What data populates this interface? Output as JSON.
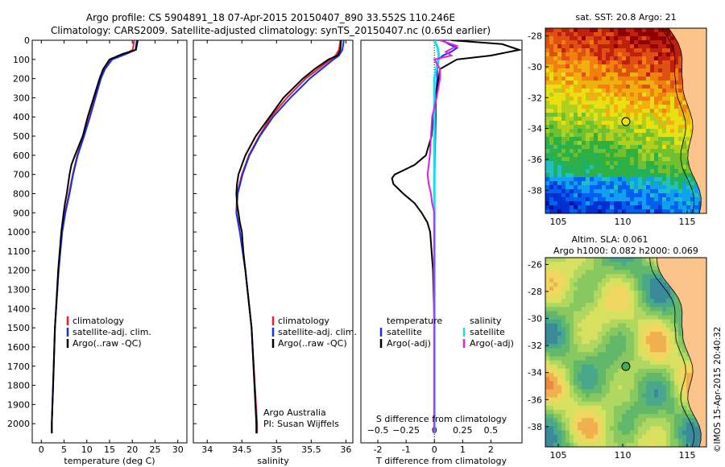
{
  "header": {
    "title_line1": "Argo profile: CS 5904891_18 07-Apr-2015 20150407_890 33.552S 110.246E",
    "title_line2": "Climatology: CARS2009. Satellite-adjusted climatology: synTS_20150407.nc (0.65d earlier)"
  },
  "colors": {
    "climatology": "#e8201e",
    "satellite": "#1a2ee8",
    "argo": "#000000",
    "satellite_s": "#18e0e8",
    "argo_s": "#e020e0"
  },
  "footer": {
    "credit": "©IMOS 15-Apr-2015 20:40:32",
    "institution": "Argo Australia",
    "pi": "PI: Susan Wijffels"
  },
  "chart_data": [
    {
      "id": "temperature",
      "type": "line",
      "xlabel": "temperature (deg C)",
      "xlim": [
        -2,
        32
      ],
      "ylim": [
        2100,
        0
      ],
      "xticks": [
        0,
        5,
        10,
        15,
        20,
        25,
        30
      ],
      "yticks": [
        0,
        100,
        200,
        300,
        400,
        500,
        600,
        700,
        800,
        900,
        1000,
        1100,
        1200,
        1300,
        1400,
        1500,
        1600,
        1700,
        1800,
        1900,
        2000
      ],
      "legend": [
        "climatology",
        "satellite-adj. clim.",
        "Argo(..raw -QC)"
      ],
      "series": [
        {
          "name": "climatology",
          "color": "#e8201e",
          "depth": [
            0,
            50,
            70,
            100,
            150,
            200,
            300,
            400,
            500,
            600,
            700,
            800,
            900,
            1000,
            1200,
            1500,
            2000,
            2050
          ],
          "values": [
            20.4,
            20.1,
            18.5,
            15.3,
            13.8,
            13.0,
            11.8,
            10.6,
            9.3,
            7.9,
            6.9,
            6.1,
            5.2,
            4.5,
            3.8,
            3.0,
            2.3,
            2.3
          ]
        },
        {
          "name": "satellite-adj. clim.",
          "color": "#1a2ee8",
          "depth": [
            0,
            50,
            70,
            100,
            150,
            200,
            300,
            400,
            500,
            600,
            700,
            800,
            900,
            1000,
            1200,
            1500,
            2000,
            2050
          ],
          "values": [
            21.0,
            20.7,
            18.8,
            15.6,
            14.0,
            13.1,
            11.9,
            10.7,
            9.4,
            8.0,
            7.0,
            6.2,
            5.3,
            4.6,
            3.8,
            3.0,
            2.3,
            2.3
          ]
        },
        {
          "name": "Argo(..raw -QC)",
          "color": "#000000",
          "depth": [
            0,
            50,
            70,
            100,
            150,
            200,
            300,
            400,
            500,
            600,
            650,
            700,
            750,
            800,
            850,
            900,
            1000,
            1200,
            1500,
            1800,
            2000,
            2050
          ],
          "values": [
            21.2,
            20.8,
            18.0,
            15.0,
            13.6,
            12.8,
            11.5,
            10.2,
            9.1,
            7.4,
            6.6,
            6.2,
            5.9,
            5.6,
            5.2,
            4.9,
            4.4,
            3.7,
            3.0,
            2.6,
            2.3,
            2.3
          ]
        }
      ]
    },
    {
      "id": "salinity",
      "type": "line",
      "xlabel": "salinity",
      "xlim": [
        33.8,
        36.1
      ],
      "ylim": [
        2100,
        0
      ],
      "xticks": [
        34,
        34.5,
        35,
        35.5,
        36
      ],
      "legend": [
        "climatology",
        "satellite-adj. clim.",
        "Argo(..raw -QC)"
      ],
      "series": [
        {
          "name": "climatology",
          "color": "#e8201e",
          "depth": [
            0,
            50,
            80,
            100,
            150,
            200,
            300,
            400,
            500,
            600,
            700,
            800,
            900,
            1000,
            1200,
            1500,
            2000,
            2050
          ],
          "values": [
            35.92,
            35.9,
            35.85,
            35.78,
            35.6,
            35.42,
            35.15,
            34.92,
            34.75,
            34.6,
            34.5,
            34.43,
            34.42,
            34.47,
            34.55,
            34.64,
            34.72,
            34.72
          ]
        },
        {
          "name": "satellite-adj. clim.",
          "color": "#1a2ee8",
          "depth": [
            0,
            50,
            80,
            100,
            150,
            200,
            300,
            400,
            500,
            600,
            700,
            800,
            900,
            1000,
            1200,
            1500,
            2000,
            2050
          ],
          "values": [
            35.97,
            35.95,
            35.9,
            35.82,
            35.65,
            35.48,
            35.2,
            34.95,
            34.76,
            34.61,
            34.51,
            34.44,
            34.42,
            34.47,
            34.55,
            34.64,
            34.71,
            34.71
          ]
        },
        {
          "name": "Argo(..raw -QC)",
          "color": "#000000",
          "depth": [
            0,
            50,
            80,
            100,
            150,
            200,
            300,
            400,
            500,
            600,
            700,
            750,
            800,
            850,
            900,
            950,
            1000,
            1100,
            1200,
            1500,
            2000,
            2050
          ],
          "values": [
            35.93,
            35.92,
            35.88,
            35.75,
            35.55,
            35.38,
            35.1,
            34.9,
            34.7,
            34.55,
            34.45,
            34.43,
            34.42,
            34.43,
            34.45,
            34.47,
            34.5,
            34.52,
            34.55,
            34.64,
            34.71,
            34.71
          ]
        }
      ]
    },
    {
      "id": "difference",
      "type": "line",
      "xlabel": "T difference from climatology",
      "top_label": "S difference from climatology",
      "xlim": [
        -2.6,
        3.1
      ],
      "ylim": [
        2100,
        0
      ],
      "t_ticks": [
        -2,
        -1,
        0,
        1,
        2
      ],
      "s_ticks": [
        -0.5,
        -0.25,
        0,
        0.25,
        0.5
      ],
      "s_tick_labels": [
        "−0.5",
        "−0.25",
        "0",
        "0.25",
        "0.5"
      ],
      "legend_temperature": {
        "title": "temperature",
        "entries": [
          "satellite",
          "Argo(-adj)"
        ]
      },
      "legend_salinity": {
        "title": "salinity",
        "entries": [
          "satellite",
          "Argo(-adj)"
        ]
      },
      "series": [
        {
          "name": "satellite",
          "quantity": "temperature",
          "color": "#1a2ee8",
          "depth": [
            0,
            20,
            40,
            60,
            80,
            100,
            150,
            200,
            300,
            400,
            600,
            800,
            2050
          ],
          "values": [
            0.3,
            0.5,
            0.8,
            0.6,
            0.3,
            0.15,
            0.1,
            0.1,
            0.05,
            0.05,
            0.02,
            0.0,
            0.0
          ]
        },
        {
          "name": "Argo(-adj)",
          "quantity": "temperature",
          "color": "#000000",
          "depth": [
            0,
            20,
            50,
            80,
            100,
            150,
            200,
            300,
            400,
            500,
            600,
            650,
            700,
            720,
            750,
            800,
            850,
            900,
            950,
            1000,
            1200,
            1500,
            2050
          ],
          "values": [
            0.6,
            2.4,
            3.0,
            2.0,
            0.8,
            0.2,
            0.15,
            0.05,
            -0.05,
            -0.1,
            -0.3,
            -0.7,
            -1.4,
            -1.5,
            -1.45,
            -1.1,
            -0.7,
            -0.45,
            -0.25,
            -0.15,
            -0.05,
            0.0,
            0.0
          ]
        },
        {
          "name": "satellite",
          "quantity": "salinity",
          "color": "#18e0e8",
          "depth": [
            0,
            40,
            80,
            200,
            800,
            2050
          ],
          "values": [
            0.0,
            0.03,
            0.04,
            0.0,
            0.0,
            0.0
          ]
        },
        {
          "name": "Argo(-adj)",
          "quantity": "salinity",
          "color": "#e020e0",
          "depth": [
            0,
            30,
            60,
            80,
            100,
            150,
            200,
            300,
            400,
            500,
            600,
            700,
            750,
            800,
            850,
            900,
            1000,
            1200,
            1500,
            2050
          ],
          "values": [
            0.05,
            0.2,
            0.1,
            0.15,
            0.0,
            0.05,
            0.05,
            0.02,
            -0.02,
            -0.03,
            -0.04,
            -0.06,
            -0.05,
            -0.03,
            -0.02,
            0.0,
            0.0,
            0.0,
            0.0,
            0.0
          ]
        }
      ]
    },
    {
      "id": "sst_map",
      "type": "heatmap",
      "title": "sat. SST: 20.8 Argo: 21",
      "xlim": [
        104,
        116.5
      ],
      "ylim": [
        -39.5,
        -27.5
      ],
      "xticks": [
        105,
        110,
        115
      ],
      "yticks": [
        -28,
        -30,
        -32,
        -34,
        -36,
        -38
      ],
      "ytick_labels": [
        "-28",
        "-30",
        "-32",
        "-34",
        "-36",
        "-38"
      ],
      "argo_position": {
        "lon": 110.246,
        "lat": -33.552
      }
    },
    {
      "id": "sla_map",
      "type": "heatmap",
      "title_line1": "Altim. SLA: 0.061",
      "title_line2": "Argo h1000: 0.082 h2000: 0.069",
      "xlim": [
        104,
        116.5
      ],
      "ylim": [
        -39.5,
        -25.5
      ],
      "xticks": [
        105,
        110,
        115
      ],
      "yticks": [
        -26,
        -28,
        -30,
        -32,
        -34,
        -36,
        -38
      ],
      "ytick_labels": [
        "-26",
        "-28",
        "-30",
        "-32",
        "-34",
        "-36",
        "-38"
      ],
      "argo_position": {
        "lon": 110.246,
        "lat": -33.552
      }
    }
  ]
}
